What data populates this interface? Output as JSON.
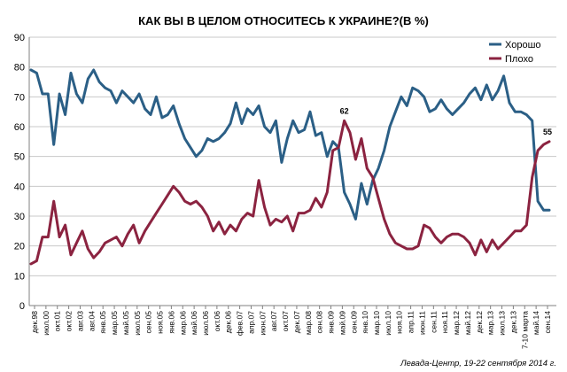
{
  "chart_data": {
    "type": "line",
    "title": "КАК ВЫ В ЦЕЛОМ ОТНОСИТЕСЬ К УКРАИНЕ?(В %)",
    "source": "Левада-Центр, 19-22 сентября 2014 г.",
    "ylim": [
      0,
      90
    ],
    "yticks": [
      "0",
      "10",
      "20",
      "30",
      "40",
      "50",
      "60",
      "70",
      "80",
      "90"
    ],
    "grid": true,
    "legend_position": "top-right",
    "xtick_labels": [
      "дек.98",
      "июл.00",
      "окт.01",
      "окт.02",
      "авг.03",
      "авг.04",
      "янв.05",
      "мар.05",
      "май.05",
      "июл.05",
      "сен.05",
      "ноя.05",
      "янв.06",
      "мар.06",
      "май.06",
      "июл.06",
      "окт.06",
      "дек.06",
      "фев.07",
      "апр.07",
      "июн.07",
      "авг.07",
      "окт.07",
      "дек.07",
      "мар.08",
      "сен.08",
      "янв.09",
      "май.09",
      "сен.09",
      "янв.10",
      "мар.10",
      "июл.10",
      "ноя.10",
      "апр.11",
      "июн.11",
      "сен.11",
      "ноя.11",
      "мар.12",
      "май.12",
      "дек.12",
      "мар.13",
      "июл.13",
      "дек.13",
      "7-10 марта",
      "май.14",
      "сен.14"
    ],
    "series": [
      {
        "name": "Хорошо",
        "color": "#2b5f86",
        "values": [
          79,
          78,
          71,
          71,
          54,
          71,
          64,
          78,
          71,
          68,
          76,
          79,
          75,
          73,
          72,
          68,
          72,
          70,
          68,
          71,
          66,
          64,
          70,
          63,
          64,
          67,
          61,
          56,
          53,
          50,
          52,
          56,
          55,
          56,
          58,
          61,
          68,
          61,
          66,
          64,
          67,
          60,
          58,
          62,
          48,
          56,
          62,
          58,
          59,
          65,
          57,
          58,
          50,
          55,
          53,
          38,
          34,
          29,
          41,
          34,
          42,
          46,
          52,
          60,
          65,
          70,
          67,
          73,
          72,
          70,
          65,
          66,
          69,
          66,
          64,
          66,
          68,
          71,
          73,
          69,
          74,
          69,
          72,
          77,
          68,
          65,
          65,
          64,
          62,
          35,
          32,
          32
        ],
        "annotation": null
      },
      {
        "name": "Плохо",
        "color": "#8b2340",
        "values": [
          14,
          15,
          23,
          23,
          35,
          23,
          27,
          17,
          21,
          25,
          19,
          16,
          18,
          21,
          22,
          23,
          20,
          24,
          27,
          21,
          25,
          28,
          31,
          34,
          37,
          40,
          38,
          35,
          34,
          35,
          33,
          30,
          25,
          28,
          24,
          27,
          25,
          29,
          31,
          30,
          42,
          33,
          27,
          29,
          28,
          30,
          25,
          31,
          31,
          32,
          36,
          33,
          38,
          52,
          53,
          62,
          58,
          49,
          56,
          46,
          43,
          36,
          29,
          24,
          21,
          20,
          19,
          19,
          20,
          27,
          26,
          23,
          21,
          23,
          24,
          24,
          23,
          21,
          17,
          22,
          18,
          22,
          19,
          21,
          23,
          25,
          25,
          27,
          43,
          52,
          54,
          55
        ],
        "annotation": {
          "index": 55,
          "label": "62"
        },
        "end_label": "55"
      }
    ]
  }
}
